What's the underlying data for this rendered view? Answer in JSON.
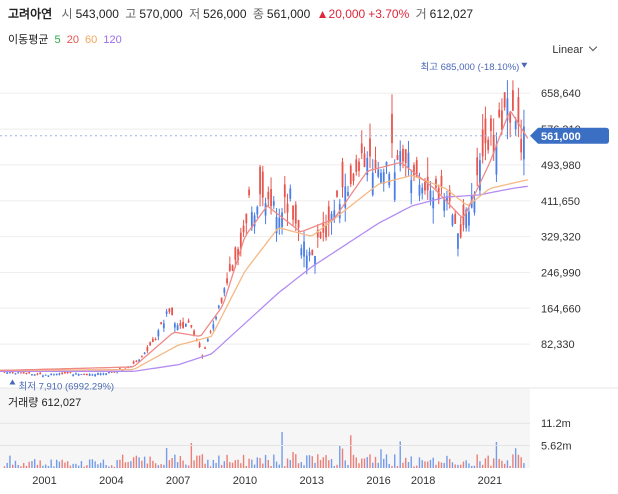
{
  "header": {
    "name": "고려아연",
    "open_label": "시",
    "open": "543,000",
    "high_label": "고",
    "high": "570,000",
    "low_label": "저",
    "low": "526,000",
    "close_label": "종",
    "close": "561,000",
    "change": "▲20,000",
    "change_pct": "+3.70%",
    "volume_label": "거",
    "volume": "612,027"
  },
  "ma_legend": {
    "label": "이동평균",
    "items": [
      {
        "period": "5",
        "color": "#2aa84a"
      },
      {
        "period": "20",
        "color": "#e8554e"
      },
      {
        "period": "60",
        "color": "#f2a55c"
      },
      {
        "period": "120",
        "color": "#9b6be8"
      }
    ]
  },
  "scale_mode": "Linear",
  "colors": {
    "up": "#e8554e",
    "down": "#4a7ee6",
    "price_tag": "#3a6fc4",
    "grid": "#eeeeee"
  },
  "chart_data": {
    "type": "candlestick",
    "price_ticks": [
      "658,640",
      "576,310",
      "493,980",
      "411,650",
      "329,320",
      "246,990",
      "164,660",
      "82,330"
    ],
    "price_tick_values": [
      658640,
      576310,
      493980,
      411650,
      329320,
      246990,
      164660,
      82330
    ],
    "ylim": [
      0,
      735000
    ],
    "current_price": "561,000",
    "current_price_value": 561000,
    "high_annotation": "최고 685,000 (-18.10%)",
    "high_value": 685000,
    "low_annotation": "최저 7,910 (6992.29%)",
    "low_value": 7910,
    "x_ticks": [
      "2001",
      "2004",
      "2007",
      "2010",
      "2013",
      "2016",
      "2018",
      "2021"
    ],
    "x_tick_years": [
      2001,
      2004,
      2007,
      2010,
      2013,
      2016,
      2018,
      2021
    ],
    "x_range_years": [
      1999.5,
      2023.3
    ],
    "volume_label": "거래량",
    "volume_value": "612,027",
    "volume_ticks": [
      "11.2m",
      "5.62m"
    ],
    "volume_tick_values": [
      11.2,
      5.62
    ],
    "volume_max": 14.5,
    "price_path": [
      [
        1999.5,
        20000
      ],
      [
        2000.5,
        15000
      ],
      [
        2001.5,
        12000
      ],
      [
        2002.5,
        15000
      ],
      [
        2003.5,
        13000
      ],
      [
        2004.5,
        18000
      ],
      [
        2005.2,
        25000
      ],
      [
        2005.8,
        50000
      ],
      [
        2006.5,
        95000
      ],
      [
        2007.0,
        160000
      ],
      [
        2007.5,
        120000
      ],
      [
        2008.0,
        135000
      ],
      [
        2008.6,
        55000
      ],
      [
        2009.2,
        150000
      ],
      [
        2009.8,
        230000
      ],
      [
        2010.3,
        300000
      ],
      [
        2010.7,
        420000
      ],
      [
        2011.0,
        380000
      ],
      [
        2011.6,
        430000
      ],
      [
        2012.0,
        380000
      ],
      [
        2012.5,
        420000
      ],
      [
        2013.0,
        310000
      ],
      [
        2013.6,
        290000
      ],
      [
        2014.1,
        340000
      ],
      [
        2014.5,
        400000
      ],
      [
        2015.0,
        430000
      ],
      [
        2015.5,
        470000
      ],
      [
        2016.0,
        520000
      ],
      [
        2016.5,
        480000
      ],
      [
        2017.0,
        500000
      ],
      [
        2017.5,
        520000
      ],
      [
        2018.0,
        480000
      ],
      [
        2018.5,
        450000
      ],
      [
        2019.0,
        440000
      ],
      [
        2019.5,
        420000
      ],
      [
        2020.1,
        330000
      ],
      [
        2020.5,
        380000
      ],
      [
        2021.0,
        460000
      ],
      [
        2021.3,
        540000
      ],
      [
        2021.7,
        560000
      ],
      [
        2022.0,
        600000
      ],
      [
        2022.3,
        640000
      ],
      [
        2022.6,
        580000
      ],
      [
        2022.9,
        540000
      ],
      [
        2023.2,
        561000
      ]
    ],
    "ma_paths": {
      "ma20": [
        [
          1999.5,
          22000
        ],
        [
          2005.5,
          30000
        ],
        [
          2007.3,
          110000
        ],
        [
          2008.5,
          100000
        ],
        [
          2009.5,
          170000
        ],
        [
          2010.5,
          330000
        ],
        [
          2011.5,
          400000
        ],
        [
          2013.0,
          340000
        ],
        [
          2014.5,
          370000
        ],
        [
          2016.0,
          480000
        ],
        [
          2017.5,
          500000
        ],
        [
          2019.0,
          440000
        ],
        [
          2020.3,
          370000
        ],
        [
          2021.5,
          500000
        ],
        [
          2022.4,
          620000
        ],
        [
          2023.2,
          555000
        ]
      ],
      "ma60": [
        [
          1999.5,
          22000
        ],
        [
          2005.5,
          24000
        ],
        [
          2007.5,
          80000
        ],
        [
          2009.0,
          100000
        ],
        [
          2010.5,
          250000
        ],
        [
          2012.0,
          350000
        ],
        [
          2013.5,
          330000
        ],
        [
          2015.0,
          390000
        ],
        [
          2016.5,
          450000
        ],
        [
          2018.0,
          470000
        ],
        [
          2019.5,
          440000
        ],
        [
          2020.5,
          400000
        ],
        [
          2021.5,
          440000
        ],
        [
          2023.2,
          460000
        ]
      ],
      "ma120": [
        [
          1999.5,
          20000
        ],
        [
          2005.5,
          20000
        ],
        [
          2007.5,
          35000
        ],
        [
          2009.0,
          60000
        ],
        [
          2010.5,
          130000
        ],
        [
          2012.0,
          200000
        ],
        [
          2013.5,
          260000
        ],
        [
          2015.0,
          310000
        ],
        [
          2016.5,
          360000
        ],
        [
          2018.0,
          400000
        ],
        [
          2019.5,
          420000
        ],
        [
          2021.0,
          425000
        ],
        [
          2022.5,
          440000
        ],
        [
          2023.2,
          445000
        ]
      ]
    }
  }
}
